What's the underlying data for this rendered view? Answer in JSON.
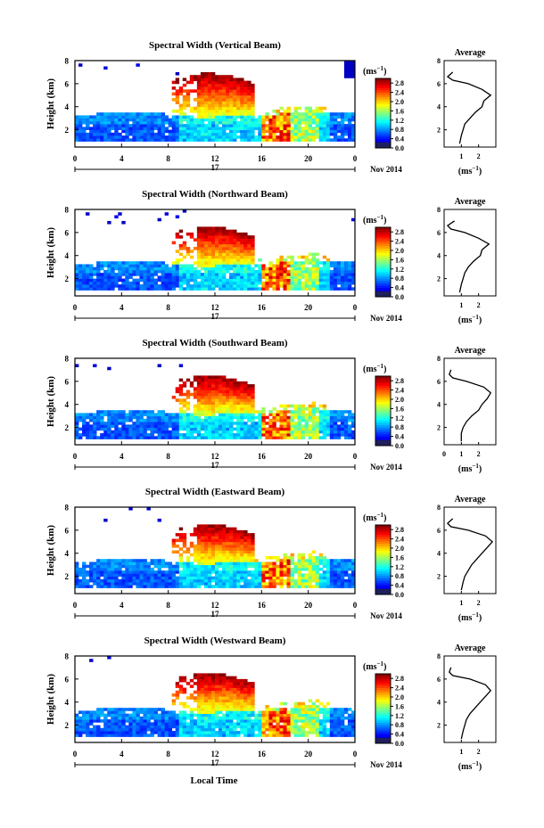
{
  "figure": {
    "xlabel": "Local Time",
    "date_label": "Nov 2014",
    "day_label": "17",
    "ylabel": "Height (km)",
    "unit_label": "(ms",
    "unit_exp": "−1",
    "avg_title": "Average",
    "colors": {
      "background": "#ffffff",
      "ink": "#000000",
      "dark_band": "#4b4c9e"
    }
  },
  "chart_data": [
    {
      "type": "heatmap",
      "title": "Spectral Width (Vertical Beam)",
      "xlabel": "Local Time",
      "ylabel": "Height (km)",
      "x_ticks": [
        "0",
        "4",
        "8",
        "12",
        "16",
        "20",
        "0"
      ],
      "y_ticks": [
        "2",
        "4",
        "6",
        "8"
      ],
      "xlim": [
        0,
        24
      ],
      "ylim": [
        0.5,
        8
      ],
      "colorbar": {
        "label": "(ms⁻¹)",
        "ticks": [
          "0.0",
          "0.4",
          "0.8",
          "1.2",
          "1.6",
          "2.0",
          "2.4",
          "2.8"
        ],
        "range": [
          0,
          3.0
        ]
      },
      "profile": {
        "title": "Average",
        "xlabel": "(ms⁻¹)",
        "x_ticks": [
          "1",
          "2"
        ],
        "y_ticks": [
          "2",
          "4",
          "6",
          "8"
        ],
        "xlim": [
          0,
          3
        ],
        "heights": [
          0.8,
          1.5,
          2.0,
          2.5,
          3.0,
          3.5,
          4.0,
          4.5,
          5.0,
          5.5,
          6.0,
          6.3,
          6.6,
          7.0
        ],
        "values": [
          0.9,
          1.0,
          1.1,
          1.2,
          1.5,
          1.8,
          2.2,
          2.3,
          2.7,
          2.2,
          1.4,
          0.5,
          0.2,
          0.5
        ]
      }
    },
    {
      "type": "heatmap",
      "title": "Spectral Width (Northward Beam)",
      "xlabel": "Local Time",
      "ylabel": "Height (km)",
      "x_ticks": [
        "0",
        "4",
        "8",
        "12",
        "16",
        "20",
        "0"
      ],
      "y_ticks": [
        "2",
        "4",
        "6",
        "8"
      ],
      "xlim": [
        0,
        24
      ],
      "ylim": [
        0.5,
        8
      ],
      "colorbar": {
        "label": "(ms⁻¹)",
        "ticks": [
          "0.0",
          "0.4",
          "0.8",
          "1.2",
          "1.6",
          "2.0",
          "2.4",
          "2.8"
        ],
        "range": [
          0,
          3.0
        ]
      },
      "profile": {
        "title": "Average",
        "xlabel": "(ms⁻¹)",
        "x_ticks": [
          "1",
          "2"
        ],
        "y_ticks": [
          "2",
          "4",
          "6",
          "8"
        ],
        "xlim": [
          0,
          3
        ],
        "heights": [
          0.8,
          1.5,
          2.0,
          2.5,
          3.0,
          3.5,
          4.0,
          4.5,
          5.0,
          5.5,
          6.0,
          6.3,
          6.6,
          7.0
        ],
        "values": [
          0.9,
          1.0,
          1.1,
          1.2,
          1.4,
          1.7,
          2.1,
          2.2,
          2.6,
          2.0,
          1.2,
          0.4,
          0.2,
          0.6
        ]
      }
    },
    {
      "type": "heatmap",
      "title": "Spectral Width (Southward Beam)",
      "xlabel": "Local Time",
      "ylabel": "Height (km)",
      "x_ticks": [
        "0",
        "4",
        "8",
        "12",
        "16",
        "20",
        "0"
      ],
      "y_ticks": [
        "2",
        "4",
        "6",
        "8"
      ],
      "xlim": [
        0,
        24
      ],
      "ylim": [
        0.5,
        8
      ],
      "colorbar": {
        "label": "(ms⁻¹)",
        "ticks": [
          "0.0",
          "0.4",
          "0.8",
          "1.2",
          "1.6",
          "2.0",
          "2.4",
          "2.8"
        ],
        "range": [
          0,
          3.0
        ]
      },
      "profile": {
        "title": "Average",
        "xlabel": "(ms⁻¹)",
        "x_ticks": [
          "0",
          "1",
          "2"
        ],
        "y_ticks": [
          "2",
          "4",
          "6",
          "8"
        ],
        "xlim": [
          0,
          3
        ],
        "heights": [
          0.8,
          1.5,
          2.0,
          2.5,
          3.0,
          3.5,
          4.0,
          4.5,
          5.0,
          5.5,
          6.0,
          6.3,
          6.6,
          7.0
        ],
        "values": [
          1.0,
          1.0,
          1.1,
          1.3,
          1.6,
          2.0,
          2.2,
          2.5,
          2.7,
          2.3,
          1.3,
          0.5,
          0.3,
          0.4
        ]
      }
    },
    {
      "type": "heatmap",
      "title": "Spectral Width (Eastward Beam)",
      "xlabel": "Local Time",
      "ylabel": "Height (km)",
      "x_ticks": [
        "0",
        "4",
        "8",
        "12",
        "16",
        "20",
        "0"
      ],
      "y_ticks": [
        "2",
        "4",
        "6",
        "8"
      ],
      "xlim": [
        0,
        24
      ],
      "ylim": [
        0.5,
        8
      ],
      "colorbar": {
        "label": "(ms⁻¹)",
        "ticks": [
          "0.0",
          "0.4",
          "0.8",
          "1.2",
          "1.6",
          "2.0",
          "2.4",
          "2.8"
        ],
        "range": [
          0,
          3.0
        ]
      },
      "profile": {
        "title": "Average",
        "xlabel": "(ms⁻¹)",
        "x_ticks": [
          "1",
          "2"
        ],
        "y_ticks": [
          "2",
          "4",
          "6",
          "8"
        ],
        "xlim": [
          0,
          3
        ],
        "heights": [
          0.8,
          1.5,
          2.0,
          2.5,
          3.0,
          3.5,
          4.0,
          4.5,
          5.0,
          5.5,
          6.0,
          6.3,
          6.6,
          7.0
        ],
        "values": [
          1.0,
          1.1,
          1.2,
          1.4,
          1.6,
          1.9,
          2.2,
          2.5,
          2.8,
          2.4,
          1.4,
          0.4,
          0.2,
          0.5
        ]
      }
    },
    {
      "type": "heatmap",
      "title": "Spectral Width (Westward Beam)",
      "xlabel": "Local Time",
      "ylabel": "Height (km)",
      "x_ticks": [
        "0",
        "4",
        "8",
        "12",
        "16",
        "20",
        "0"
      ],
      "y_ticks": [
        "2",
        "4",
        "6",
        "8"
      ],
      "xlim": [
        0,
        24
      ],
      "ylim": [
        0.5,
        8
      ],
      "colorbar": {
        "label": "(ms⁻¹)",
        "ticks": [
          "0.0",
          "0.4",
          "0.8",
          "1.2",
          "1.6",
          "2.0",
          "2.4",
          "2.8"
        ],
        "range": [
          0,
          3.0
        ]
      },
      "profile": {
        "title": "Average",
        "xlabel": "(ms⁻¹)",
        "x_ticks": [
          "1",
          "2"
        ],
        "y_ticks": [
          "2",
          "4",
          "6",
          "8"
        ],
        "xlim": [
          0,
          3
        ],
        "heights": [
          0.8,
          1.5,
          2.0,
          2.5,
          3.0,
          3.5,
          4.0,
          4.5,
          5.0,
          5.5,
          6.0,
          6.3,
          6.6,
          7.0
        ],
        "values": [
          1.0,
          1.1,
          1.2,
          1.3,
          1.5,
          1.8,
          2.1,
          2.4,
          2.7,
          2.4,
          1.5,
          0.5,
          0.3,
          0.4
        ]
      }
    }
  ]
}
